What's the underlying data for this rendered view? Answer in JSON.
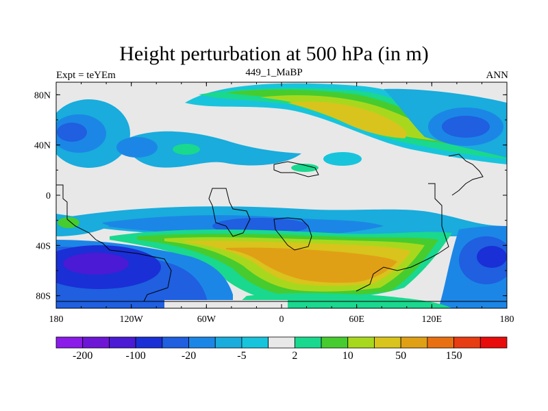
{
  "title": "Height perturbation at 500 hPa (in m)",
  "subtitle_left": "Expt = teYEm",
  "subtitle_center": "449_1_MaBP",
  "subtitle_right": "ANN",
  "axes": {
    "x_ticks": [
      "180",
      "120W",
      "60W",
      "0",
      "60E",
      "120E",
      "180"
    ],
    "y_ticks": [
      "80N",
      "40N",
      "0",
      "40S",
      "80S"
    ]
  },
  "colorbar": {
    "colors": [
      "#8a1be8",
      "#6e16d6",
      "#4a1ad4",
      "#1a2fd6",
      "#1f5fe0",
      "#1c86e6",
      "#19acdc",
      "#18c4dc",
      "#e8e8e8",
      "#1ad88e",
      "#46cc2e",
      "#a8d81e",
      "#d8c41c",
      "#e0a016",
      "#e87012",
      "#e83c12",
      "#e80c0c"
    ],
    "labels": [
      "-200",
      "-100",
      "-20",
      "-5",
      "2",
      "10",
      "50",
      "150"
    ]
  }
}
